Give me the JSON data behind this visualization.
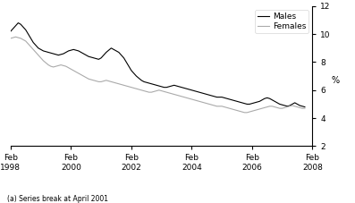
{
  "footnote": "(a) Series break at April 2001",
  "ylabel": "%",
  "ylim": [
    2,
    12
  ],
  "yticks": [
    2,
    4,
    6,
    8,
    10,
    12
  ],
  "xlim": [
    0,
    120
  ],
  "xtick_positions": [
    0,
    24,
    48,
    72,
    96,
    120
  ],
  "xtick_labels": [
    "Feb\n1998",
    "Feb\n2000",
    "Feb\n2002",
    "Feb\n2004",
    "Feb\n2006",
    "Feb\n2008"
  ],
  "line_color_males": "#000000",
  "line_color_females": "#aaaaaa",
  "legend_labels": [
    "Males",
    "Females"
  ],
  "males": [
    10.2,
    10.4,
    10.6,
    10.8,
    10.7,
    10.5,
    10.3,
    10.0,
    9.7,
    9.4,
    9.2,
    9.0,
    8.9,
    8.8,
    8.75,
    8.7,
    8.65,
    8.6,
    8.55,
    8.5,
    8.55,
    8.6,
    8.7,
    8.8,
    8.85,
    8.9,
    8.85,
    8.8,
    8.7,
    8.6,
    8.5,
    8.4,
    8.35,
    8.3,
    8.25,
    8.2,
    8.3,
    8.5,
    8.7,
    8.85,
    9.0,
    8.9,
    8.8,
    8.7,
    8.5,
    8.3,
    8.0,
    7.7,
    7.4,
    7.2,
    7.0,
    6.85,
    6.7,
    6.6,
    6.55,
    6.5,
    6.45,
    6.4,
    6.35,
    6.3,
    6.25,
    6.2,
    6.2,
    6.25,
    6.3,
    6.35,
    6.3,
    6.25,
    6.2,
    6.15,
    6.1,
    6.05,
    6.0,
    5.95,
    5.9,
    5.85,
    5.8,
    5.75,
    5.7,
    5.65,
    5.6,
    5.55,
    5.5,
    5.5,
    5.5,
    5.45,
    5.4,
    5.35,
    5.3,
    5.25,
    5.2,
    5.15,
    5.1,
    5.05,
    5.0,
    5.0,
    5.05,
    5.1,
    5.15,
    5.2,
    5.3,
    5.4,
    5.45,
    5.4,
    5.3,
    5.2,
    5.1,
    5.0,
    4.95,
    4.9,
    4.85,
    4.9,
    5.0,
    5.1,
    5.0,
    4.9,
    4.85,
    4.8
  ],
  "females": [
    9.7,
    9.75,
    9.8,
    9.75,
    9.7,
    9.6,
    9.5,
    9.3,
    9.1,
    8.9,
    8.7,
    8.5,
    8.3,
    8.1,
    7.95,
    7.8,
    7.7,
    7.65,
    7.7,
    7.75,
    7.8,
    7.75,
    7.7,
    7.6,
    7.5,
    7.4,
    7.3,
    7.2,
    7.1,
    7.0,
    6.9,
    6.8,
    6.75,
    6.7,
    6.65,
    6.6,
    6.6,
    6.65,
    6.7,
    6.65,
    6.6,
    6.55,
    6.5,
    6.45,
    6.4,
    6.35,
    6.3,
    6.25,
    6.2,
    6.15,
    6.1,
    6.05,
    6.0,
    5.95,
    5.9,
    5.85,
    5.85,
    5.9,
    5.95,
    6.0,
    5.95,
    5.9,
    5.85,
    5.8,
    5.75,
    5.7,
    5.65,
    5.6,
    5.55,
    5.5,
    5.45,
    5.4,
    5.35,
    5.3,
    5.25,
    5.2,
    5.15,
    5.1,
    5.05,
    5.0,
    4.95,
    4.9,
    4.85,
    4.85,
    4.85,
    4.8,
    4.75,
    4.7,
    4.65,
    4.6,
    4.55,
    4.5,
    4.45,
    4.4,
    4.4,
    4.45,
    4.5,
    4.55,
    4.6,
    4.65,
    4.7,
    4.75,
    4.8,
    4.85,
    4.85,
    4.8,
    4.75,
    4.7,
    4.7,
    4.75,
    4.8,
    4.85,
    4.9,
    4.85,
    4.8,
    4.75,
    4.7,
    4.7
  ],
  "linewidth": 0.8,
  "tick_fontsize": 6.5,
  "ylabel_fontsize": 7,
  "legend_fontsize": 6.5,
  "footnote_fontsize": 5.5
}
